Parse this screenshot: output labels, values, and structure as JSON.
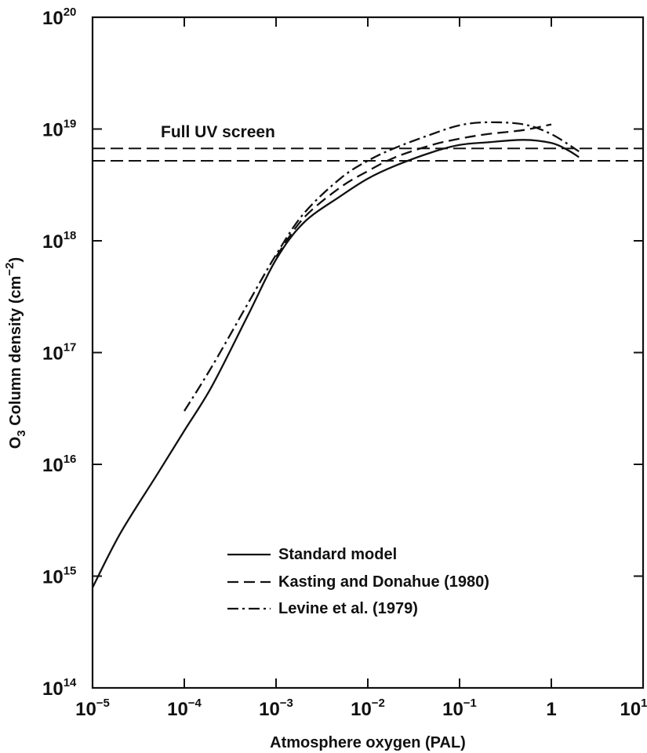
{
  "chart_data": {
    "type": "line",
    "xlabel": "Atmosphere oxygen (PAL)",
    "ylabel_main": "O",
    "ylabel_sub": "3",
    "ylabel_rest": " Column density (cm",
    "ylabel_sup": "−2",
    "ylabel_close": ")",
    "x_scale": "log",
    "y_scale": "log",
    "xlim": [
      1e-05,
      10
    ],
    "ylim": [
      100000000000000.0,
      1e+20
    ],
    "grid": false,
    "legend_position": "bottom-center",
    "x_ticks": [
      {
        "value": 1e-05,
        "base": "10",
        "exp": "−5"
      },
      {
        "value": 0.0001,
        "base": "10",
        "exp": "−4"
      },
      {
        "value": 0.001,
        "base": "10",
        "exp": "−3"
      },
      {
        "value": 0.01,
        "base": "10",
        "exp": "−2"
      },
      {
        "value": 0.1,
        "base": "10",
        "exp": "−1"
      },
      {
        "value": 1,
        "base": "1",
        "exp": ""
      },
      {
        "value": 10,
        "base": "10",
        "exp": "1"
      }
    ],
    "y_ticks": [
      {
        "value": 100000000000000.0,
        "base": "10",
        "exp": "14"
      },
      {
        "value": 1000000000000000.0,
        "base": "10",
        "exp": "15"
      },
      {
        "value": 1e+16,
        "base": "10",
        "exp": "16"
      },
      {
        "value": 1e+17,
        "base": "10",
        "exp": "17"
      },
      {
        "value": 1e+18,
        "base": "10",
        "exp": "18"
      },
      {
        "value": 1e+19,
        "base": "10",
        "exp": "19"
      },
      {
        "value": 1e+20,
        "base": "10",
        "exp": "20"
      }
    ],
    "reference_lines": {
      "label": "Full UV screen",
      "y": [
        6.7e+18,
        5.2e+18
      ]
    },
    "series": [
      {
        "name": "Standard model",
        "dash": "solid",
        "points": [
          [
            1e-05,
            790000000000000.0
          ],
          [
            2e-05,
            2400000000000000.0
          ],
          [
            5e-05,
            8000000000000000.0
          ],
          [
            0.0001,
            2e+16
          ],
          [
            0.0002,
            5e+16
          ],
          [
            0.0005,
            2.2e+17
          ],
          [
            0.001,
            6.8e+17
          ],
          [
            0.002,
            1.45e+18
          ],
          [
            0.005,
            2.5e+18
          ],
          [
            0.01,
            3.6e+18
          ],
          [
            0.02,
            4.7e+18
          ],
          [
            0.05,
            6.2e+18
          ],
          [
            0.1,
            7.2e+18
          ],
          [
            0.2,
            7.6e+18
          ],
          [
            0.5,
            8e+18
          ],
          [
            1,
            7.5e+18
          ],
          [
            1.5,
            6.5e+18
          ],
          [
            2,
            5.6e+18
          ]
        ]
      },
      {
        "name": "Kasting and Donahue (1980)",
        "dash": "dashed",
        "points": [
          [
            0.001,
            7.2e+17
          ],
          [
            0.002,
            1.6e+18
          ],
          [
            0.005,
            3e+18
          ],
          [
            0.01,
            4.2e+18
          ],
          [
            0.02,
            5.6e+18
          ],
          [
            0.05,
            7.2e+18
          ],
          [
            0.1,
            8.2e+18
          ],
          [
            0.2,
            9e+18
          ],
          [
            0.5,
            9.8e+18
          ],
          [
            1,
            1.1e+19
          ]
        ]
      },
      {
        "name": "Levine et al. (1979)",
        "dash": "dashdot",
        "points": [
          [
            0.0001,
            3e+16
          ],
          [
            0.0002,
            7.5e+16
          ],
          [
            0.0005,
            2.8e+17
          ],
          [
            0.001,
            7.5e+17
          ],
          [
            0.002,
            1.75e+18
          ],
          [
            0.005,
            3.6e+18
          ],
          [
            0.01,
            5.2e+18
          ],
          [
            0.02,
            6.8e+18
          ],
          [
            0.05,
            9e+18
          ],
          [
            0.1,
            1.08e+19
          ],
          [
            0.2,
            1.15e+19
          ],
          [
            0.5,
            1.1e+19
          ],
          [
            1,
            9e+18
          ],
          [
            2,
            6.3e+18
          ]
        ]
      }
    ],
    "legend": [
      {
        "label": "Standard model",
        "dash": "solid"
      },
      {
        "label": "Kasting and Donahue (1980)",
        "dash": "dashed"
      },
      {
        "label": "Levine et al. (1979)",
        "dash": "dashdot"
      }
    ]
  }
}
